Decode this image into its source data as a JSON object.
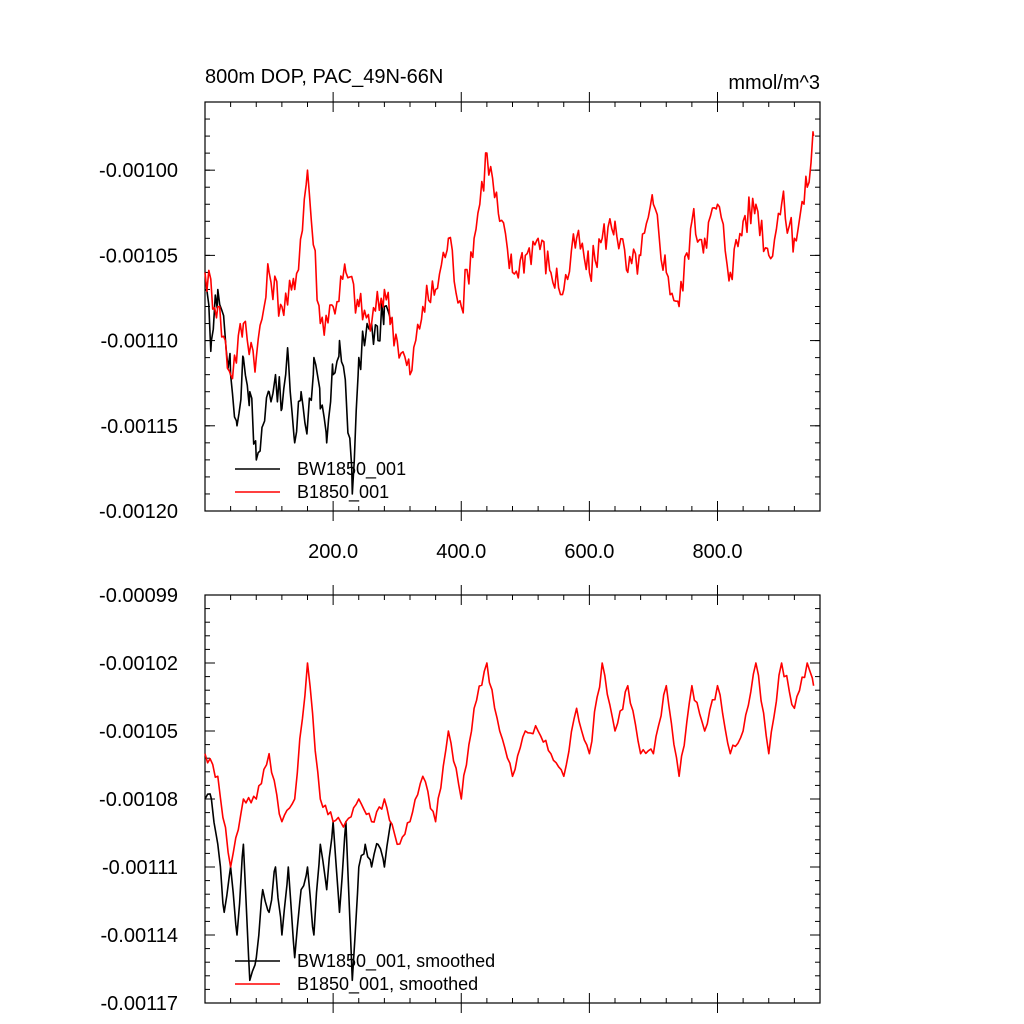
{
  "chart_data": [
    {
      "type": "line",
      "title": "800m DOP, PAC_49N-66N",
      "units": "mmol/m^3",
      "xlim": [
        0,
        960
      ],
      "ylim": [
        -0.0012,
        -0.00096
      ],
      "x_ticks": [
        200,
        400,
        600,
        800
      ],
      "x_tick_labels": [
        "200.0",
        "400.0",
        "600.0",
        "800.0"
      ],
      "y_ticks": [
        -0.0012,
        -0.00115,
        -0.0011,
        -0.00105,
        -0.001
      ],
      "y_tick_labels": [
        "-0.00120",
        "-0.00115",
        "-0.00110",
        "-0.00105",
        "-0.00100"
      ],
      "legend": [
        "BW1850_001",
        "B1850_001"
      ],
      "legend_location": "bottom-left",
      "grid": false,
      "series": [
        {
          "name": "BW1850_001",
          "color": "#000000",
          "x": [
            0,
            10,
            20,
            30,
            40,
            50,
            60,
            70,
            80,
            90,
            100,
            110,
            120,
            130,
            140,
            150,
            160,
            170,
            180,
            190,
            200,
            210,
            220,
            230,
            240,
            250,
            260,
            270,
            280,
            290
          ],
          "y": [
            -0.00107,
            -0.0011,
            -0.00107,
            -0.00109,
            -0.00112,
            -0.00115,
            -0.00111,
            -0.00113,
            -0.00117,
            -0.00115,
            -0.00113,
            -0.00112,
            -0.00114,
            -0.00111,
            -0.00116,
            -0.00113,
            -0.00115,
            -0.00111,
            -0.00114,
            -0.00116,
            -0.00112,
            -0.0011,
            -0.00113,
            -0.00119,
            -0.00111,
            -0.0011,
            -0.00109,
            -0.0011,
            -0.00108,
            -0.00109
          ]
        },
        {
          "name": "B1850_001",
          "color": "#ff0000",
          "x": [
            0,
            20,
            40,
            60,
            80,
            100,
            120,
            140,
            160,
            180,
            200,
            220,
            240,
            260,
            280,
            300,
            320,
            340,
            360,
            380,
            400,
            420,
            440,
            460,
            480,
            500,
            520,
            540,
            560,
            580,
            600,
            620,
            640,
            660,
            680,
            700,
            720,
            740,
            760,
            780,
            800,
            820,
            840,
            860,
            880,
            900,
            920,
            940,
            950
          ],
          "y": [
            -0.00106,
            -0.00108,
            -0.00112,
            -0.00109,
            -0.00111,
            -0.00106,
            -0.00108,
            -0.00107,
            -0.001,
            -0.00109,
            -0.00108,
            -0.00106,
            -0.00108,
            -0.00109,
            -0.00107,
            -0.0011,
            -0.00112,
            -0.00108,
            -0.00107,
            -0.00104,
            -0.00108,
            -0.00104,
            -0.00099,
            -0.00103,
            -0.00106,
            -0.00105,
            -0.00104,
            -0.00106,
            -0.00107,
            -0.00104,
            -0.00106,
            -0.00104,
            -0.00103,
            -0.00106,
            -0.00105,
            -0.00102,
            -0.00106,
            -0.00108,
            -0.00103,
            -0.00104,
            -0.00102,
            -0.00106,
            -0.00103,
            -0.00102,
            -0.00105,
            -0.00102,
            -0.00104,
            -0.00101,
            -0.00098
          ]
        }
      ]
    },
    {
      "type": "line",
      "xlim": [
        0,
        960
      ],
      "ylim": [
        -0.00117,
        -0.00099
      ],
      "y_ticks": [
        -0.00117,
        -0.00114,
        -0.00111,
        -0.00108,
        -0.00105,
        -0.00102,
        -0.00099
      ],
      "y_tick_labels": [
        "-0.00117",
        "-0.00114",
        "-0.00111",
        "-0.00108",
        "-0.00105",
        "-0.00102",
        "-0.00099"
      ],
      "legend": [
        "BW1850_001, smoothed",
        "B1850_001, smoothed"
      ],
      "legend_location": "bottom-left",
      "grid": false,
      "series": [
        {
          "name": "BW1850_001, smoothed",
          "color": "#000000",
          "x": [
            0,
            10,
            20,
            30,
            40,
            50,
            60,
            70,
            80,
            90,
            100,
            110,
            120,
            130,
            140,
            150,
            160,
            170,
            180,
            190,
            200,
            210,
            220,
            230,
            240,
            250,
            260,
            270,
            280,
            290
          ],
          "y": [
            -0.00108,
            -0.00108,
            -0.0011,
            -0.00113,
            -0.00111,
            -0.00114,
            -0.0011,
            -0.00116,
            -0.00115,
            -0.00112,
            -0.00113,
            -0.00111,
            -0.00114,
            -0.00111,
            -0.00115,
            -0.00112,
            -0.00111,
            -0.00114,
            -0.0011,
            -0.00112,
            -0.00109,
            -0.00113,
            -0.00109,
            -0.00116,
            -0.00111,
            -0.0011,
            -0.00111,
            -0.0011,
            -0.00111,
            -0.00109
          ]
        },
        {
          "name": "B1850_001, smoothed",
          "color": "#ff0000",
          "x": [
            0,
            20,
            40,
            60,
            80,
            100,
            120,
            140,
            160,
            180,
            200,
            220,
            240,
            260,
            280,
            300,
            320,
            340,
            360,
            380,
            400,
            420,
            440,
            460,
            480,
            500,
            520,
            540,
            560,
            580,
            600,
            620,
            640,
            660,
            680,
            700,
            720,
            740,
            760,
            780,
            800,
            820,
            840,
            860,
            880,
            900,
            920,
            940,
            950
          ],
          "y": [
            -0.00106,
            -0.00107,
            -0.00111,
            -0.00108,
            -0.00108,
            -0.00106,
            -0.00109,
            -0.00108,
            -0.00102,
            -0.00108,
            -0.00109,
            -0.00109,
            -0.00108,
            -0.00109,
            -0.00108,
            -0.0011,
            -0.00109,
            -0.00107,
            -0.00109,
            -0.00105,
            -0.00108,
            -0.00104,
            -0.00102,
            -0.00105,
            -0.00107,
            -0.00105,
            -0.00105,
            -0.00106,
            -0.00107,
            -0.00104,
            -0.00106,
            -0.00102,
            -0.00105,
            -0.00103,
            -0.00106,
            -0.00106,
            -0.00103,
            -0.00107,
            -0.00103,
            -0.00105,
            -0.00103,
            -0.00106,
            -0.00105,
            -0.00102,
            -0.00106,
            -0.00102,
            -0.00104,
            -0.00102,
            -0.00103
          ]
        }
      ]
    }
  ]
}
